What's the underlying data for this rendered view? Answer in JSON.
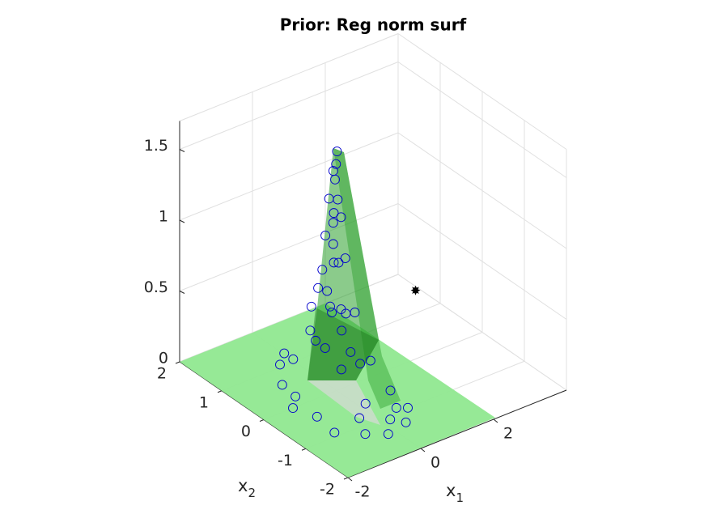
{
  "chart_data": {
    "type": "scatter3",
    "title": "Prior: Reg norm surf",
    "xlabel": "x",
    "xlabel_sub": "1",
    "ylabel": "x",
    "ylabel_sub": "2",
    "xlim": [
      -2,
      4
    ],
    "ylim": [
      -2,
      2
    ],
    "zlim": [
      0,
      1.7
    ],
    "xticks": [
      -2,
      0,
      2
    ],
    "yticks": [
      -2,
      -1,
      0,
      1,
      2
    ],
    "zticks": [
      0,
      0.5,
      1,
      1.5
    ],
    "grid": true,
    "series": [
      {
        "color": "#0000cc",
        "marker": "circle",
        "x": [
          -1.0,
          -0.4,
          0.6,
          -0.8,
          0.2,
          -1.1,
          0.9,
          -0.3,
          -0.6,
          0.4,
          -0.9,
          0.8,
          -0.2,
          -1.2,
          0.1,
          -0.5,
          0.5,
          0.0,
          0.3,
          -0.2,
          0.6,
          -0.4,
          0.7,
          0.2,
          -0.1,
          0.4,
          0.1,
          0.6,
          0.3,
          0.5,
          0.2,
          0.7,
          0.0,
          0.5,
          0.4,
          0.6,
          0.3,
          0.7,
          0.5,
          0.6,
          0.5,
          0.7,
          0.6,
          0.55,
          0.65,
          0.7,
          0.68,
          0.66
        ],
        "y": [
          -0.4,
          1.0,
          -0.9,
          0.6,
          -1.1,
          -0.9,
          -0.5,
          -0.8,
          -1.2,
          -1.3,
          0.2,
          -1.0,
          -1.4,
          0.0,
          -0.6,
          0.6,
          0.1,
          0.5,
          -0.3,
          0.1,
          0.4,
          0.9,
          -0.2,
          0.8,
          -0.2,
          0.5,
          0.2,
          0.3,
          0.7,
          0.0,
          0.4,
          0.5,
          0.6,
          0.5,
          0.3,
          0.6,
          0.6,
          0.4,
          0.7,
          0.6,
          0.5,
          0.5,
          0.7,
          0.45,
          0.6,
          0.62,
          0.58,
          0.65
        ],
        "z": [
          0,
          0.02,
          0,
          0,
          0,
          0,
          0.01,
          0,
          0,
          0,
          0.01,
          0,
          0,
          0,
          0.02,
          0.15,
          0.2,
          0.25,
          0.22,
          0.3,
          0.28,
          0.12,
          0.18,
          0.24,
          0.2,
          0.45,
          0.5,
          0.42,
          0.55,
          0.5,
          0.6,
          0.4,
          0.47,
          0.75,
          0.8,
          0.85,
          0.7,
          0.78,
          0.9,
          1.0,
          1.1,
          1.05,
          1.15,
          1.2,
          1.3,
          1.4,
          1.5,
          1.35
        ]
      },
      {
        "color": "#000000",
        "marker": "star",
        "x": [
          3.9
        ],
        "y": [
          1.5
        ],
        "z": [
          0
        ]
      }
    ]
  }
}
